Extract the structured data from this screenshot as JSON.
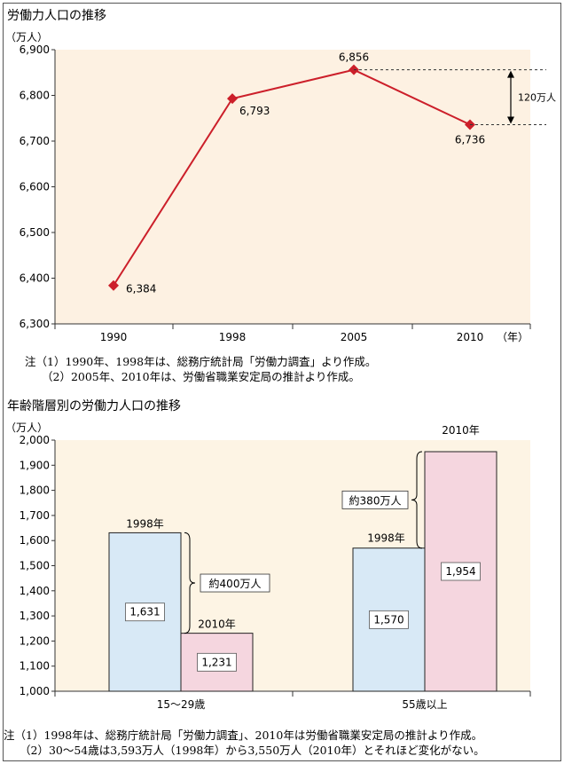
{
  "chart_data": [
    {
      "type": "line",
      "title": "労働力人口の推移",
      "ylabel": "（万人）",
      "xlabel": "（年）",
      "categories": [
        "1990",
        "1998",
        "2005",
        "2010"
      ],
      "values": [
        6384,
        6793,
        6856,
        6736
      ],
      "value_labels": [
        "6,384",
        "6,793",
        "6,856",
        "6,736"
      ],
      "ylim": [
        6300,
        6900
      ],
      "yticks": [
        "6,300",
        "6,400",
        "6,500",
        "6,600",
        "6,700",
        "6,800",
        "6,900"
      ],
      "annotation": "120万人",
      "notes": [
        "注（1）1990年、1998年は、総務庁統計局「労働力調査」より作成。",
        "（2）2005年、2010年は、労働省職業安定局の推計より作成。"
      ],
      "colors": {
        "line": "#cc1f2a",
        "background": "#fdf1e2"
      }
    },
    {
      "type": "bar",
      "title": "年齢階層別の労働力人口の推移",
      "ylabel": "（万人）",
      "categories": [
        "15～29歳",
        "55歳以上"
      ],
      "series": [
        {
          "name": "1998年",
          "values": [
            1631,
            1570
          ],
          "labels": [
            "1,631",
            "1,570"
          ]
        },
        {
          "name": "2010年",
          "values": [
            1231,
            1954
          ],
          "labels": [
            "1,231",
            "1,954"
          ]
        }
      ],
      "ylim": [
        1000,
        2000
      ],
      "yticks": [
        "1,000",
        "1,100",
        "1,200",
        "1,300",
        "1,400",
        "1,500",
        "1,600",
        "1,700",
        "1,800",
        "1,900",
        "2,000"
      ],
      "annotations": [
        "約400万人",
        "約380万人"
      ],
      "notes": [
        "注（1）1998年は、総務庁統計局「労働力調査」、2010年は労働省職業安定局の推計より作成。",
        "（2）30～54歳は3,593万人（1998年）から3,550万人（2010年）とそれほど変化がない。"
      ],
      "colors": {
        "bar_1998": "#d8e9f6",
        "bar_2010": "#f5d6df",
        "background": "#fdf4e4"
      }
    }
  ]
}
